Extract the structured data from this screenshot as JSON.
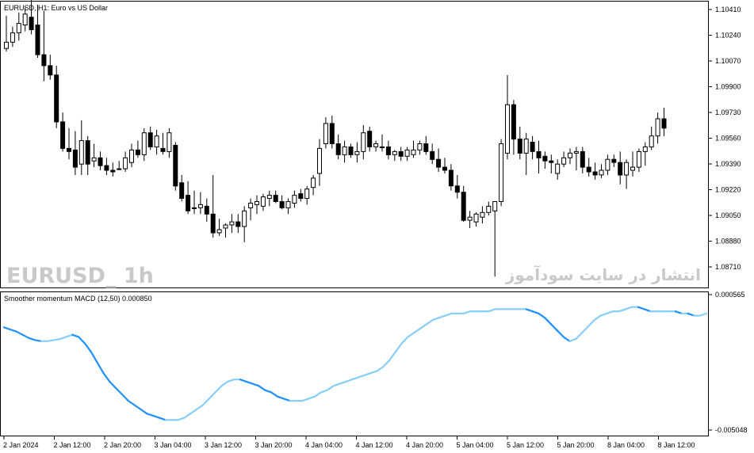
{
  "main_panel": {
    "title": "EURUSD, H1:  Euro vs US Dollar",
    "watermark_symbol": "EURUSD_ 1h",
    "watermark_site": "انتشار در سایت سودآموز",
    "price_labels": [
      "1.10410",
      "1.10240",
      "1.10070",
      "1.09900",
      "1.09730",
      "1.09560",
      "1.09390",
      "1.09220",
      "1.09050",
      "1.08880",
      "1.08710"
    ]
  },
  "indicator_panel": {
    "title": "Smoother momentum MACD (12,50) 0.000850",
    "scale_labels": [
      "0.000565",
      "-0.005048"
    ]
  },
  "time_labels": [
    "2 Jan 2024",
    "2 Jan 12:00",
    "2 Jan 20:00",
    "3 Jan 04:00",
    "3 Jan 12:00",
    "3 Jan 20:00",
    "4 Jan 04:00",
    "4 Jan 12:00",
    "4 Jan 20:00",
    "5 Jan 04:00",
    "5 Jan 12:00",
    "5 Jan 20:00",
    "8 Jan 04:00",
    "8 Jan 12:00"
  ],
  "chart_data": {
    "type": "candlestick",
    "symbol": "EURUSD",
    "timeframe": "H1",
    "y_range": [
      1.0863,
      1.1046
    ],
    "candles": [
      [
        1.1016,
        1.1037,
        1.1014,
        1.102
      ],
      [
        1.102,
        1.103,
        1.1017,
        1.1026
      ],
      [
        1.1026,
        1.1039,
        1.1021,
        1.1032
      ],
      [
        1.1031,
        1.1042,
        1.1027,
        1.1038
      ],
      [
        1.1036,
        1.1048,
        1.1025,
        1.1028
      ],
      [
        1.1031,
        1.1044,
        1.101,
        1.1012
      ],
      [
        1.1012,
        1.104,
        1.0995,
        1.1005
      ],
      [
        1.1005,
        1.1012,
        1.0996,
        1.0999
      ],
      [
        1.0999,
        1.1005,
        1.0965,
        1.0969
      ],
      [
        1.0969,
        1.0975,
        1.095,
        1.0952
      ],
      [
        1.0952,
        1.0965,
        1.0945,
        1.095
      ],
      [
        1.0951,
        1.0963,
        1.0935,
        1.094
      ],
      [
        1.0942,
        1.097,
        1.0935,
        1.0957
      ],
      [
        1.0957,
        1.096,
        1.0935,
        1.0942
      ],
      [
        1.0944,
        1.0955,
        1.094,
        1.0946
      ],
      [
        1.0946,
        1.095,
        1.0938,
        1.0941
      ],
      [
        1.0941,
        1.0946,
        1.0935,
        1.0938
      ],
      [
        1.0938,
        1.0943,
        1.0934,
        1.0937
      ],
      [
        1.0939,
        1.0944,
        1.0938,
        1.0939
      ],
      [
        1.0939,
        1.095,
        1.0937,
        1.0946
      ],
      [
        1.0943,
        1.0955,
        1.094,
        1.0951
      ],
      [
        1.0951,
        1.0957,
        1.0946,
        1.0948
      ],
      [
        1.0948,
        1.0965,
        1.0944,
        1.0962
      ],
      [
        1.0962,
        1.0966,
        1.0951,
        1.0953
      ],
      [
        1.0953,
        1.0964,
        1.0948,
        1.096
      ],
      [
        1.0952,
        1.0962,
        1.0948,
        1.095
      ],
      [
        1.095,
        1.0965,
        1.0946,
        1.0962
      ],
      [
        1.0954,
        1.0956,
        1.0925,
        1.0928
      ],
      [
        1.093,
        1.0935,
        1.0918,
        1.092
      ],
      [
        1.0922,
        1.0931,
        1.091,
        1.0912
      ],
      [
        1.0914,
        1.0925,
        1.091,
        1.0914
      ],
      [
        1.0914,
        1.0924,
        1.091,
        1.0916
      ],
      [
        1.0915,
        1.092,
        1.0905,
        1.091
      ],
      [
        1.091,
        1.0935,
        1.0895,
        1.0898
      ],
      [
        1.0898,
        1.0907,
        1.0896,
        1.09
      ],
      [
        1.0901,
        1.0904,
        1.0895,
        1.0903
      ],
      [
        1.0903,
        1.091,
        1.0898,
        1.0905
      ],
      [
        1.0905,
        1.091,
        1.0898,
        1.0902
      ],
      [
        1.0902,
        1.0915,
        1.0892,
        1.0912
      ],
      [
        1.0914,
        1.092,
        1.0906,
        1.0917
      ],
      [
        1.0916,
        1.0922,
        1.091,
        1.0918
      ],
      [
        1.0915,
        1.0923,
        1.0912,
        1.0921
      ],
      [
        1.092,
        1.0925,
        1.0915,
        1.0922
      ],
      [
        1.0922,
        1.0925,
        1.0917,
        1.0918
      ],
      [
        1.0918,
        1.0922,
        1.0913,
        1.0914
      ],
      [
        1.0914,
        1.092,
        1.091,
        1.0918
      ],
      [
        1.0917,
        1.0925,
        1.0914,
        1.0922
      ],
      [
        1.0923,
        1.0926,
        1.0918,
        1.092
      ],
      [
        1.092,
        1.0928,
        1.0916,
        1.0926
      ],
      [
        1.0927,
        1.0935,
        1.0922,
        1.0933
      ],
      [
        1.0936,
        1.0958,
        1.0928,
        1.0952
      ],
      [
        1.0955,
        1.0972,
        1.0952,
        1.0968
      ],
      [
        1.0968,
        1.0973,
        1.0952,
        1.0955
      ],
      [
        1.0955,
        1.0961,
        1.0945,
        1.0948
      ],
      [
        1.0948,
        1.0957,
        1.0943,
        1.0953
      ],
      [
        1.0953,
        1.0955,
        1.0946,
        1.0948
      ],
      [
        1.0948,
        1.0956,
        1.0943,
        1.095
      ],
      [
        1.095,
        1.0967,
        1.0945,
        1.0962
      ],
      [
        1.0963,
        1.0966,
        1.095,
        1.0953
      ],
      [
        1.0953,
        1.0957,
        1.095,
        1.0955
      ],
      [
        1.0953,
        1.0961,
        1.095,
        1.0953
      ],
      [
        1.0953,
        1.0957,
        1.0945,
        1.0948
      ],
      [
        1.0948,
        1.0951,
        1.0944,
        1.095
      ],
      [
        1.095,
        1.0953,
        1.0944,
        1.0947
      ],
      [
        1.0947,
        1.0953,
        1.0944,
        1.0951
      ],
      [
        1.0948,
        1.0957,
        1.0946,
        1.0951
      ],
      [
        1.0951,
        1.0957,
        1.0948,
        1.0955
      ],
      [
        1.0955,
        1.096,
        1.0948,
        1.095
      ],
      [
        1.095,
        1.0955,
        1.0942,
        1.0945
      ],
      [
        1.0945,
        1.0952,
        1.0937,
        1.094
      ],
      [
        1.094,
        1.0946,
        1.0936,
        1.0938
      ],
      [
        1.0938,
        1.0942,
        1.0925,
        1.0928
      ],
      [
        1.0928,
        1.0935,
        1.092,
        1.0924
      ],
      [
        1.0924,
        1.0928,
        1.0905,
        1.0906
      ],
      [
        1.0906,
        1.0912,
        1.0901,
        1.0908
      ],
      [
        1.0905,
        1.0911,
        1.0902,
        1.091
      ],
      [
        1.0908,
        1.0915,
        1.0904,
        1.0911
      ],
      [
        1.0911,
        1.0918,
        1.0909,
        1.0915
      ],
      [
        1.0912,
        1.0918,
        1.087,
        1.0918
      ],
      [
        1.0918,
        1.0958,
        1.0915,
        1.0955
      ],
      [
        1.0949,
        1.0999,
        1.0945,
        1.098
      ],
      [
        1.098,
        1.0983,
        1.0948,
        1.0958
      ],
      [
        1.0958,
        1.0966,
        1.0945,
        1.0949
      ],
      [
        1.0949,
        1.0962,
        1.0935,
        1.0958
      ],
      [
        1.0956,
        1.096,
        1.0945,
        1.095
      ],
      [
        1.095,
        1.0957,
        1.0936,
        1.0946
      ],
      [
        1.0947,
        1.095,
        1.0939,
        1.0944
      ],
      [
        1.0944,
        1.0948,
        1.0936,
        1.0943
      ],
      [
        1.0936,
        1.0945,
        1.0932,
        1.0942
      ],
      [
        1.0942,
        1.095,
        1.094,
        1.0946
      ],
      [
        1.0946,
        1.0952,
        1.0942,
        1.0949
      ],
      [
        1.0949,
        1.0953,
        1.0938,
        1.095
      ],
      [
        1.095,
        1.0953,
        1.0936,
        1.094
      ],
      [
        1.094,
        1.0946,
        1.0934,
        1.0937
      ],
      [
        1.0937,
        1.0943,
        1.0932,
        1.0935
      ],
      [
        1.0935,
        1.0942,
        1.0933,
        1.0938
      ],
      [
        1.0938,
        1.0948,
        1.0935,
        1.0945
      ],
      [
        1.0945,
        1.0948,
        1.094,
        1.0943
      ],
      [
        1.0943,
        1.095,
        1.0929,
        1.0935
      ],
      [
        1.0935,
        1.0945,
        1.0926,
        1.0943
      ],
      [
        1.0938,
        1.095,
        1.0934,
        1.094
      ],
      [
        1.094,
        1.0952,
        1.0937,
        1.095
      ],
      [
        1.095,
        1.0956,
        1.0941,
        1.0953
      ],
      [
        1.0953,
        1.0966,
        1.0951,
        1.096
      ],
      [
        1.096,
        1.0975,
        1.0955,
        1.0971
      ],
      [
        1.0971,
        1.0978,
        1.096,
        1.0965
      ]
    ],
    "macd_range": [
      -0.005048,
      0.000565
    ],
    "macd_values": [
      -0.00045,
      -0.00055,
      -0.00065,
      -0.0008,
      -0.00095,
      -0.00105,
      -0.0011,
      -0.0011,
      -0.00105,
      -0.001,
      -0.0009,
      -0.0008,
      -0.0009,
      -0.0012,
      -0.0016,
      -0.0021,
      -0.0026,
      -0.003,
      -0.0033,
      -0.0036,
      -0.0039,
      -0.0041,
      -0.0043,
      -0.0045,
      -0.0046,
      -0.0047,
      -0.0048,
      -0.0048,
      -0.0048,
      -0.0047,
      -0.0045,
      -0.0043,
      -0.0041,
      -0.0038,
      -0.0035,
      -0.0032,
      -0.003,
      -0.0029,
      -0.0029,
      -0.003,
      -0.0031,
      -0.0032,
      -0.0034,
      -0.0035,
      -0.0037,
      -0.0038,
      -0.0039,
      -0.0039,
      -0.0039,
      -0.0038,
      -0.0037,
      -0.0035,
      -0.0034,
      -0.0032,
      -0.0031,
      -0.003,
      -0.0029,
      -0.0028,
      -0.0027,
      -0.0026,
      -0.0025,
      -0.0023,
      -0.002,
      -0.0016,
      -0.0012,
      -0.0009,
      -0.0007,
      -0.0005,
      -0.0003,
      -0.0001,
      0.0,
      0.0001,
      0.0002,
      0.0002,
      0.0002,
      0.0003,
      0.0003,
      0.0003,
      0.0003,
      0.0004,
      0.0004,
      0.0004,
      0.0004,
      0.0004,
      0.0004,
      0.0003,
      0.0002,
      0.0,
      -0.0003,
      -0.0006,
      -0.0009,
      -0.0011,
      -0.001,
      -0.0007,
      -0.0004,
      -0.0001,
      0.0001,
      0.0002,
      0.0003,
      0.0003,
      0.0004,
      0.0005,
      0.0005,
      0.0004,
      0.0003,
      0.0003,
      0.0003,
      0.0003,
      0.0003,
      0.0002,
      0.0002,
      0.0001,
      0.0001,
      0.0002
    ]
  },
  "colors": {
    "bull_candle": "#ffffff",
    "bear_candle": "#000000",
    "macd_rising": "#87cefa",
    "macd_falling": "#1e90ff",
    "watermark": "#c9c9c9"
  }
}
